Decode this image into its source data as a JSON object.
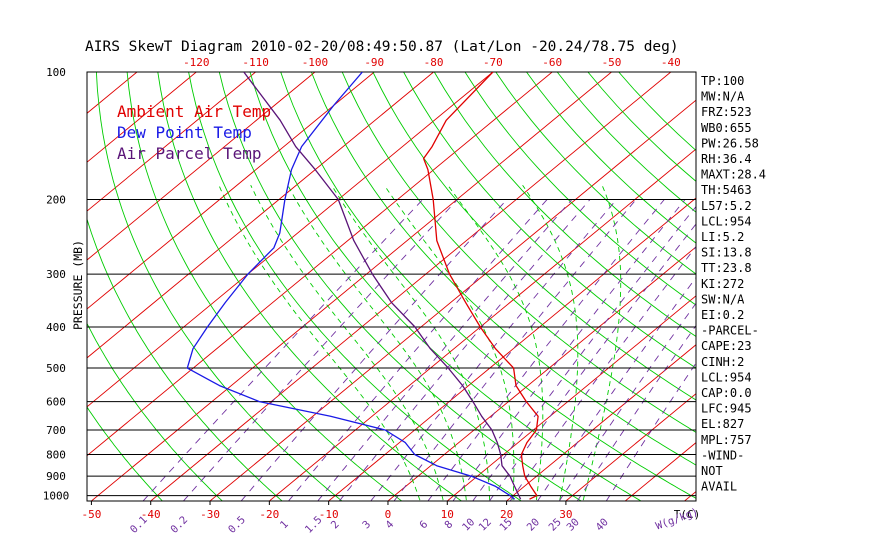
{
  "title": "AIRS SkewT Diagram 2010-02-20/08:49:50.87 (Lat/Lon -20.24/78.75 deg)",
  "colors": {
    "background": "#ffffff",
    "ambient": "#e00000",
    "dewpoint": "#1a1ae6",
    "parcel": "#5a1478",
    "isotherm": "#e00000",
    "dry_adiabat": "#00cc00",
    "moist_adiabat": "#00cc00",
    "mixing_ratio": "#7030a0",
    "axis": "#000000"
  },
  "chart_data": {
    "type": "line",
    "title": "AIRS SkewT Diagram 2010-02-20/08:49:50.87 (Lat/Lon -20.24/78.75 deg)",
    "ylabel": "PRESSURE (MB)",
    "x_unit_label": "T(C)",
    "mixing_ratio_unit_label": "W(g/kg)",
    "pressure_ticks": [
      100,
      200,
      300,
      400,
      500,
      600,
      700,
      800,
      900,
      1000
    ],
    "bottom_temperature_ticks": [
      -50,
      -40,
      -30,
      -20,
      -10,
      0,
      10,
      20,
      30
    ],
    "top_temperature_ticks": [
      -120,
      -110,
      -100,
      -90,
      -80,
      -70,
      -60,
      -50,
      -40
    ],
    "mixing_ratio_ticks": [
      "0.1",
      "0.2",
      "0.5",
      "1",
      "1.5",
      "2",
      "3",
      "4",
      "6",
      "8",
      "10",
      "12",
      "15",
      "20",
      "25",
      "30",
      "40"
    ],
    "legend": [
      "Ambient Air Temp",
      "Dew Point Temp",
      "Air Parcel Temp"
    ],
    "legend_placement": "top-left",
    "series": [
      {
        "name": "Ambient Air Temp",
        "points": [
          {
            "p": 1020,
            "t": 23.5
          },
          {
            "p": 1000,
            "t": 24
          },
          {
            "p": 950,
            "t": 21
          },
          {
            "p": 900,
            "t": 18
          },
          {
            "p": 850,
            "t": 15.5
          },
          {
            "p": 800,
            "t": 13
          },
          {
            "p": 750,
            "t": 11.5
          },
          {
            "p": 700,
            "t": 10.5
          },
          {
            "p": 650,
            "t": 8
          },
          {
            "p": 600,
            "t": 3
          },
          {
            "p": 550,
            "t": -2
          },
          {
            "p": 500,
            "t": -6
          },
          {
            "p": 450,
            "t": -13
          },
          {
            "p": 400,
            "t": -20
          },
          {
            "p": 350,
            "t": -27.5
          },
          {
            "p": 300,
            "t": -36
          },
          {
            "p": 250,
            "t": -45
          },
          {
            "p": 200,
            "t": -54
          },
          {
            "p": 170,
            "t": -61
          },
          {
            "p": 160,
            "t": -64
          },
          {
            "p": 150,
            "t": -65
          },
          {
            "p": 130,
            "t": -68
          },
          {
            "p": 100,
            "t": -70
          }
        ]
      },
      {
        "name": "Dew Point Temp",
        "points": [
          {
            "p": 1020,
            "t": 21
          },
          {
            "p": 1000,
            "t": 19.5
          },
          {
            "p": 950,
            "t": 15
          },
          {
            "p": 900,
            "t": 9
          },
          {
            "p": 850,
            "t": 1
          },
          {
            "p": 800,
            "t": -5
          },
          {
            "p": 750,
            "t": -9
          },
          {
            "p": 700,
            "t": -15
          },
          {
            "p": 650,
            "t": -27
          },
          {
            "p": 600,
            "t": -42
          },
          {
            "p": 550,
            "t": -52
          },
          {
            "p": 500,
            "t": -61
          },
          {
            "p": 450,
            "t": -64
          },
          {
            "p": 400,
            "t": -66
          },
          {
            "p": 350,
            "t": -68
          },
          {
            "p": 300,
            "t": -70
          },
          {
            "p": 260,
            "t": -71
          },
          {
            "p": 240,
            "t": -73
          },
          {
            "p": 200,
            "t": -79
          },
          {
            "p": 170,
            "t": -84
          },
          {
            "p": 150,
            "t": -87
          },
          {
            "p": 120,
            "t": -90
          },
          {
            "p": 100,
            "t": -92
          }
        ]
      },
      {
        "name": "Air Parcel Temp",
        "points": [
          {
            "p": 1020,
            "t": 22
          },
          {
            "p": 954,
            "t": 18.5
          },
          {
            "p": 900,
            "t": 15.5
          },
          {
            "p": 850,
            "t": 12
          },
          {
            "p": 800,
            "t": 9.5
          },
          {
            "p": 750,
            "t": 6.5
          },
          {
            "p": 700,
            "t": 3
          },
          {
            "p": 650,
            "t": -1.5
          },
          {
            "p": 600,
            "t": -6
          },
          {
            "p": 550,
            "t": -11
          },
          {
            "p": 500,
            "t": -17
          },
          {
            "p": 450,
            "t": -24
          },
          {
            "p": 400,
            "t": -31
          },
          {
            "p": 350,
            "t": -40
          },
          {
            "p": 300,
            "t": -49
          },
          {
            "p": 250,
            "t": -59
          },
          {
            "p": 200,
            "t": -70
          },
          {
            "p": 170,
            "t": -80
          },
          {
            "p": 150,
            "t": -88
          },
          {
            "p": 130,
            "t": -96
          },
          {
            "p": 100,
            "t": -112
          }
        ]
      }
    ],
    "indices": [
      "TP:100",
      "MW:N/A",
      "FRZ:523",
      "WB0:655",
      "PW:26.58",
      "RH:36.4",
      "MAXT:28.4",
      "TH:5463",
      "L57:5.2",
      "LCL:954",
      "LI:5.2",
      "SI:13.8",
      "TT:23.8",
      "KI:272",
      "SW:N/A",
      "EI:0.2",
      "-PARCEL-",
      "CAPE:23",
      "CINH:2",
      "LCL:954",
      "CAP:0.0",
      "LFC:945",
      "EL:827",
      "MPL:757",
      "-WIND-",
      "NOT",
      "AVAIL"
    ]
  }
}
